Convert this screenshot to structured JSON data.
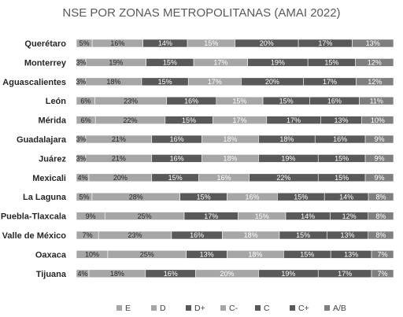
{
  "chart_data": {
    "type": "bar",
    "orientation": "horizontal",
    "stacked": true,
    "title": "NSE POR ZONAS METROPOLITANAS (AMAI 2022)",
    "categories": [
      "Querétaro",
      "Monterrey",
      "Aguascalientes",
      "León",
      "Mérida",
      "Guadalajara",
      "Juárez",
      "Mexicali",
      "La Laguna",
      "Puebla-Tlaxcala",
      "Valle de México",
      "Oaxaca",
      "Tijuana"
    ],
    "series": [
      {
        "name": "E",
        "color": "#a6a6a6",
        "label_color": "#262626",
        "values": [
          5,
          3,
          3,
          6,
          6,
          3,
          3,
          4,
          5,
          9,
          7,
          10,
          4
        ]
      },
      {
        "name": "D",
        "color": "#a6a6a6",
        "label_color": "#262626",
        "values": [
          16,
          19,
          18,
          23,
          22,
          21,
          21,
          20,
          28,
          25,
          23,
          25,
          18
        ]
      },
      {
        "name": "D+",
        "color": "#595959",
        "label_color": "#ffffff",
        "values": [
          14,
          15,
          15,
          16,
          15,
          16,
          16,
          15,
          15,
          17,
          16,
          13,
          16
        ]
      },
      {
        "name": "C-",
        "color": "#a6a6a6",
        "label_color": "#ffffff",
        "values": [
          15,
          17,
          17,
          15,
          17,
          18,
          18,
          16,
          16,
          15,
          18,
          18,
          20
        ]
      },
      {
        "name": "C",
        "color": "#595959",
        "label_color": "#ffffff",
        "values": [
          20,
          19,
          20,
          15,
          17,
          18,
          19,
          22,
          15,
          14,
          15,
          15,
          19
        ]
      },
      {
        "name": "C+",
        "color": "#595959",
        "label_color": "#ffffff",
        "values": [
          17,
          15,
          17,
          16,
          13,
          16,
          15,
          15,
          14,
          12,
          13,
          13,
          17
        ]
      },
      {
        "name": "A/B",
        "color": "#7f7f7f",
        "label_color": "#ffffff",
        "values": [
          13,
          12,
          12,
          11,
          10,
          9,
          9,
          9,
          8,
          8,
          8,
          7,
          7
        ]
      }
    ],
    "value_suffix": "%",
    "xlim": [
      0,
      100
    ],
    "grid": false,
    "legend": "bottom"
  }
}
